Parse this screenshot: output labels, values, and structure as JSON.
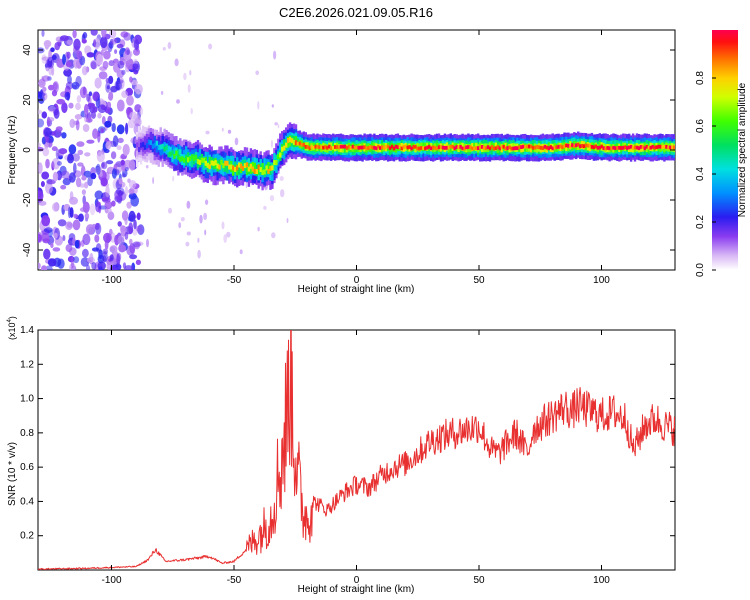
{
  "title": "C2E6.2026.021.09.05.R16",
  "chart_data": [
    {
      "type": "heatmap",
      "xlabel": "Height of straight line (km)",
      "ylabel": "Frequency (Hz)",
      "xlim": [
        -130,
        130
      ],
      "ylim": [
        -48,
        48
      ],
      "xticks": [
        -100,
        -50,
        0,
        50,
        100
      ],
      "yticks": [
        -40,
        -20,
        0,
        20,
        40
      ],
      "colorbar": {
        "label": "Normalized spectral amplitude",
        "range": [
          0,
          1
        ],
        "ticks": [
          0.0,
          0.2,
          0.4,
          0.6,
          0.8
        ],
        "tick_labels": [
          "0.0",
          "0.2",
          "0.4",
          "0.6",
          "0.8"
        ]
      },
      "ridge": [
        {
          "x": -90,
          "y": 1,
          "amp": 0.15
        },
        {
          "x": -85,
          "y": 3,
          "amp": 0.3
        },
        {
          "x": -80,
          "y": 1,
          "amp": 0.45
        },
        {
          "x": -75,
          "y": -2,
          "amp": 0.6
        },
        {
          "x": -70,
          "y": -3,
          "amp": 0.65
        },
        {
          "x": -65,
          "y": -4,
          "amp": 0.7
        },
        {
          "x": -60,
          "y": -6,
          "amp": 0.75
        },
        {
          "x": -55,
          "y": -6,
          "amp": 0.75
        },
        {
          "x": -50,
          "y": -7,
          "amp": 0.8
        },
        {
          "x": -45,
          "y": -7,
          "amp": 0.8
        },
        {
          "x": -40,
          "y": -8,
          "amp": 0.8
        },
        {
          "x": -35,
          "y": -8,
          "amp": 0.75
        },
        {
          "x": -32,
          "y": -2,
          "amp": 0.7
        },
        {
          "x": -28,
          "y": 4,
          "amp": 0.8
        },
        {
          "x": -25,
          "y": 3,
          "amp": 0.85
        },
        {
          "x": -20,
          "y": 1,
          "amp": 0.9
        },
        {
          "x": -10,
          "y": 1,
          "amp": 0.92
        },
        {
          "x": 0,
          "y": 1,
          "amp": 0.95
        },
        {
          "x": 20,
          "y": 1,
          "amp": 0.95
        },
        {
          "x": 40,
          "y": 1,
          "amp": 0.97
        },
        {
          "x": 60,
          "y": 1,
          "amp": 0.97
        },
        {
          "x": 80,
          "y": 1,
          "amp": 0.98
        },
        {
          "x": 90,
          "y": 2,
          "amp": 0.97
        },
        {
          "x": 100,
          "y": 1,
          "amp": 0.98
        },
        {
          "x": 110,
          "y": 1,
          "amp": 0.95
        },
        {
          "x": 120,
          "y": 1,
          "amp": 0.95
        },
        {
          "x": 130,
          "y": 1,
          "amp": 0.95
        }
      ]
    },
    {
      "type": "line",
      "xlabel": "Height of straight line (km)",
      "ylabel": "SNR (10 * v/v)",
      "y_multiplier": "(x10",
      "y_multiplier_exp": "4",
      "y_multiplier_close": ")",
      "xlim": [
        -130,
        130
      ],
      "ylim": [
        0,
        1.4
      ],
      "xticks": [
        -100,
        -50,
        0,
        50,
        100
      ],
      "yticks": [
        0.2,
        0.4,
        0.6,
        0.8,
        1.0,
        1.2,
        1.4
      ],
      "series": [
        {
          "color": "#e83030",
          "x": [
            -130,
            -110,
            -90,
            -85,
            -82,
            -78,
            -70,
            -60,
            -55,
            -50,
            -45,
            -40,
            -35,
            -32,
            -30,
            -28,
            -27,
            -26,
            -25,
            -24,
            -22,
            -20,
            -18,
            -15,
            -12,
            -10,
            -5,
            0,
            5,
            10,
            15,
            20,
            25,
            30,
            35,
            40,
            45,
            50,
            55,
            58,
            62,
            65,
            70,
            72,
            75,
            80,
            85,
            88,
            90,
            95,
            100,
            105,
            110,
            113,
            118,
            122,
            126,
            130
          ],
          "y": [
            0.005,
            0.01,
            0.02,
            0.06,
            0.12,
            0.05,
            0.06,
            0.08,
            0.04,
            0.05,
            0.12,
            0.2,
            0.3,
            0.55,
            0.7,
            0.95,
            1.35,
            0.9,
            0.75,
            0.55,
            0.35,
            0.3,
            0.4,
            0.38,
            0.35,
            0.38,
            0.45,
            0.5,
            0.48,
            0.55,
            0.6,
            0.62,
            0.68,
            0.75,
            0.78,
            0.8,
            0.82,
            0.84,
            0.7,
            0.68,
            0.75,
            0.8,
            0.68,
            0.82,
            0.85,
            0.9,
            0.95,
            0.92,
            0.96,
            0.93,
            0.9,
            0.92,
            0.88,
            0.7,
            0.85,
            0.88,
            0.84,
            0.82
          ]
        }
      ]
    }
  ]
}
